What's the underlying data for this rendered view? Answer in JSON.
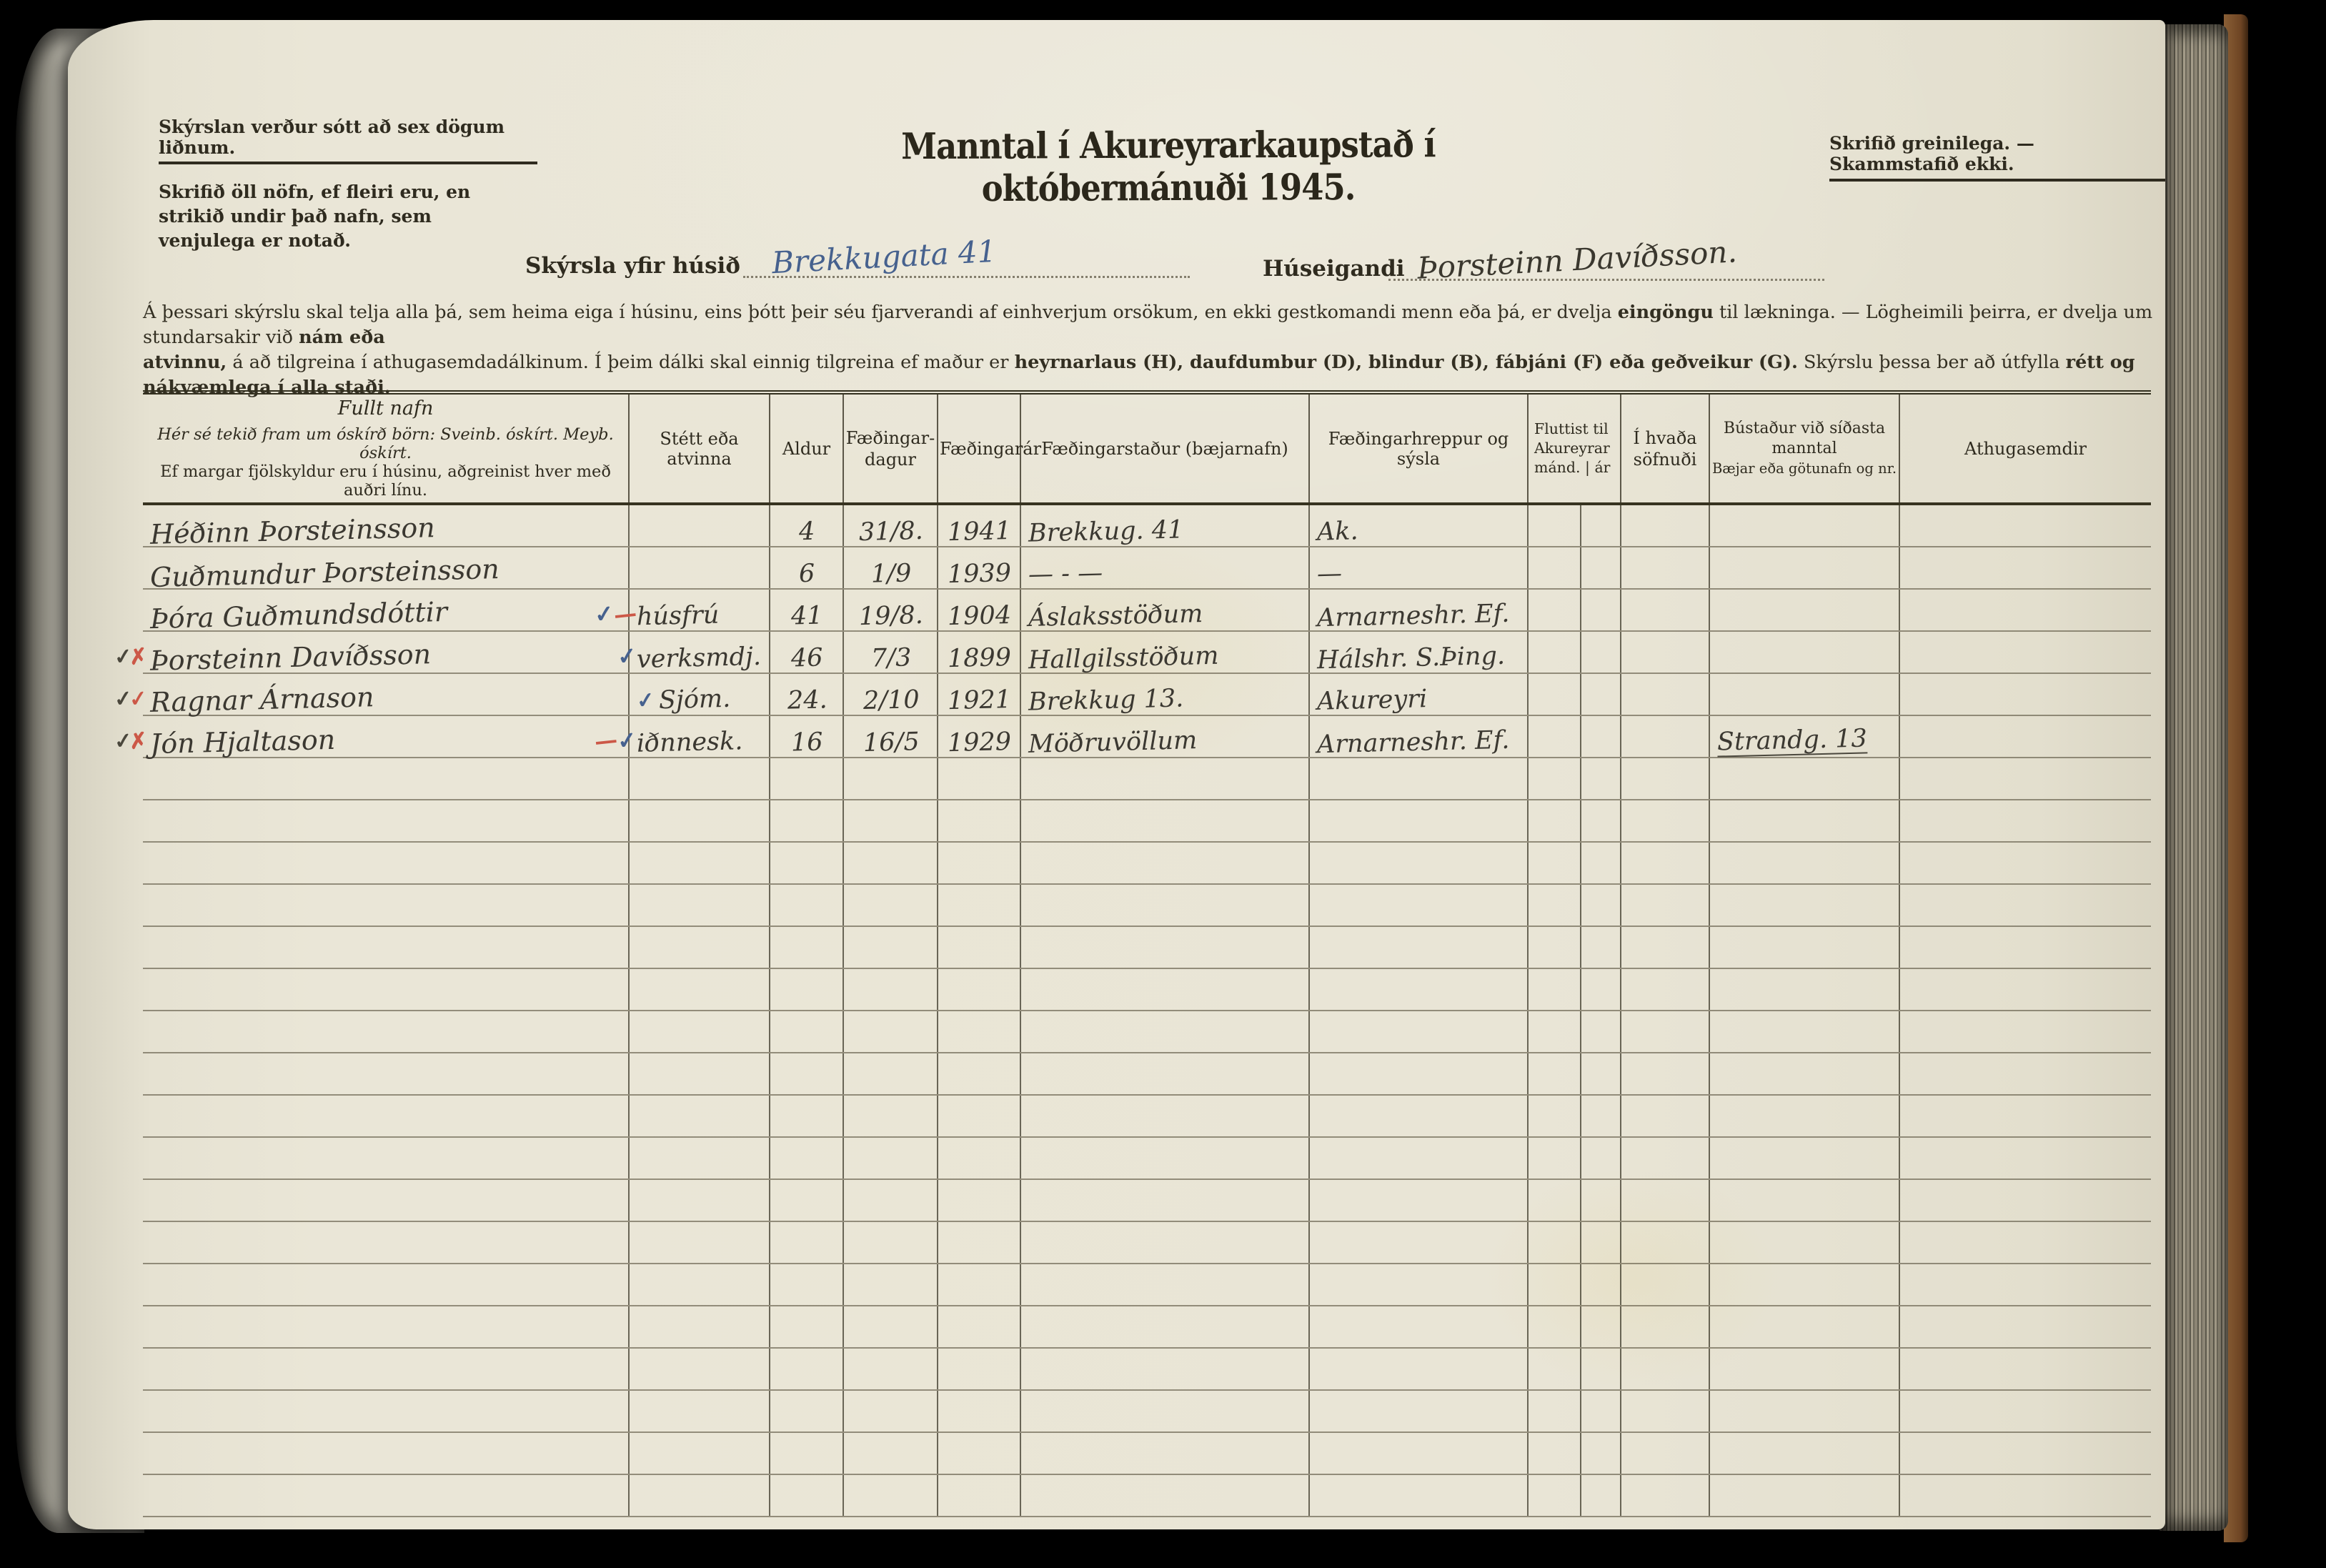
{
  "palette": {
    "ink": "#3a372e",
    "blue": "#46618e",
    "red": "#cc5847",
    "dark": "#4a473c",
    "print": "#2f2b1f"
  },
  "header": {
    "note_left_underlined": "Skýrslan verður sótt að sex dögum liðnum.",
    "note_left_rest": "Skrifið öll nöfn, ef fleiri eru, en strikið undir það nafn, sem venjulega er notað.",
    "title": "Manntal í Akureyrarkaupstað í októbermánuði 1945.",
    "note_right": "Skrifið greinilega. — Skammstafið ekki."
  },
  "form": {
    "house_label": "Skýrsla yfir húsið",
    "house_value": "Brekkugata 41",
    "owner_label": "Húseigandi",
    "owner_value": "Þorsteinn Davíðsson."
  },
  "instructions": {
    "line1": [
      {
        "t": "Á þessari skýrslu skal telja alla þá, sem heima eiga í húsinu,  eins þótt þeir séu fjarverandi af einhverjum orsökum, en ekki gestkomandi menn eða þá, er dvelja ",
        "b": false
      },
      {
        "t": "eingöngu",
        "b": true
      },
      {
        "t": " til lækninga.  — Lögheimili þeirra, er dvelja um stundarsakir við ",
        "b": false
      },
      {
        "t": "nám eða",
        "b": true
      }
    ],
    "line2": [
      {
        "t": "atvinnu,",
        "b": true
      },
      {
        "t": " á að tilgreina í athugasemdadálkinum. Í þeim dálki  skal einnig tilgreina ef maður er ",
        "b": false
      },
      {
        "t": "heyrnarlaus (H), daufdumbur (D), blindur (B), fábjáni (F) eða geðveikur (G).",
        "b": true
      },
      {
        "t": " Skýrslu  þessa ber að útfylla ",
        "b": false
      },
      {
        "t": "rétt og nákvæmlega í alla staði.",
        "b": true
      }
    ]
  },
  "table": {
    "headers": {
      "name_title": "Fullt nafn",
      "name_sub1": "Hér sé tekið fram um óskírð börn: Sveinb. óskírt. Meyb. óskírt.",
      "name_sub2": "Ef margar fjölskyldur eru í húsinu, aðgreinist hver með auðri línu.",
      "occupation": "Stétt eða atvinna",
      "age": "Aldur",
      "birth_day_l1": "Fæðingar-",
      "birth_day_l2": "dagur",
      "birth_year": "Fæðingarár",
      "birth_place": "Fæðingarstaður (bæjarnafn)",
      "birth_parish": "Fæðingarhreppur og sýsla",
      "moved_l1": "Fluttist til",
      "moved_l2": "Akureyrar",
      "moved_l3": "mánd. | ár",
      "congregation_l1": "Í hvaða",
      "congregation_l2": "söfnuði",
      "residence_l1": "Bústaður við síðasta",
      "residence_l2": "manntal",
      "residence_l3": "Bæjar eða götunafn og nr.",
      "remarks": "Athugasemdir"
    },
    "total_rows": 24,
    "rows": [
      {
        "name": "Héðinn Þorsteinsson",
        "occupation": "",
        "age": "4",
        "birth_day": "31/8.",
        "birth_year": "1941",
        "birth_place": "Brekkug. 41",
        "birth_parish": "Ak.",
        "residence": "",
        "remarks": "",
        "pre_marks": [],
        "name_marks": [],
        "occ_marks": []
      },
      {
        "name": "Guðmundur Þorsteinsson",
        "occupation": "",
        "age": "6",
        "birth_day": "1/9",
        "birth_year": "1939",
        "birth_place": "— ‐ —",
        "birth_parish": "—",
        "residence": "",
        "remarks": "",
        "pre_marks": [],
        "name_marks": [],
        "occ_marks": []
      },
      {
        "name": "Þóra Guðmundsdóttir",
        "occupation": "húsfrú",
        "age": "41",
        "birth_day": "19/8.",
        "birth_year": "1904",
        "birth_place": "Áslaksstöðum",
        "birth_parish": "Arnarneshr. Ef.",
        "residence": "",
        "remarks": "",
        "pre_marks": [],
        "name_marks": [
          {
            "glyph": "✓",
            "color": "blue"
          },
          {
            "glyph": "—",
            "color": "red"
          }
        ],
        "occ_marks": []
      },
      {
        "name": "Þorsteinn Davíðsson",
        "occupation": "verksmdj.",
        "age": "46",
        "birth_day": "7/3",
        "birth_year": "1899",
        "birth_place": "Hallgilsstöðum",
        "birth_parish": "Hálshr. S.Þing.",
        "residence": "",
        "remarks": "",
        "pre_marks": [
          {
            "glyph": "✓",
            "color": "dark"
          },
          {
            "glyph": "✗",
            "color": "red"
          }
        ],
        "name_marks": [
          {
            "glyph": "✓",
            "color": "blue"
          }
        ],
        "occ_marks": []
      },
      {
        "name": "Ragnar Árnason",
        "occupation": "Sjóm.",
        "age": "24.",
        "birth_day": "2/10",
        "birth_year": "1921",
        "birth_place": "Brekkug 13.",
        "birth_parish": "Akureyri",
        "residence": "",
        "remarks": "",
        "pre_marks": [
          {
            "glyph": "✓",
            "color": "dark"
          },
          {
            "glyph": "✓",
            "color": "red"
          }
        ],
        "name_marks": [],
        "occ_marks": [
          {
            "glyph": "✓",
            "color": "blue"
          }
        ]
      },
      {
        "name": "Jón Hjaltason",
        "occupation": "iðnnesk.",
        "age": "16",
        "birth_day": "16/5",
        "birth_year": "1929",
        "birth_place": "Möðruvöllum",
        "birth_parish": "Arnarneshr. Ef.",
        "residence": "Strandg. 13",
        "remarks": "",
        "pre_marks": [
          {
            "glyph": "✓",
            "color": "dark"
          },
          {
            "glyph": "✗",
            "color": "red"
          }
        ],
        "name_marks": [
          {
            "glyph": "—",
            "color": "red"
          },
          {
            "glyph": "✓",
            "color": "blue"
          }
        ],
        "occ_marks": []
      }
    ]
  }
}
